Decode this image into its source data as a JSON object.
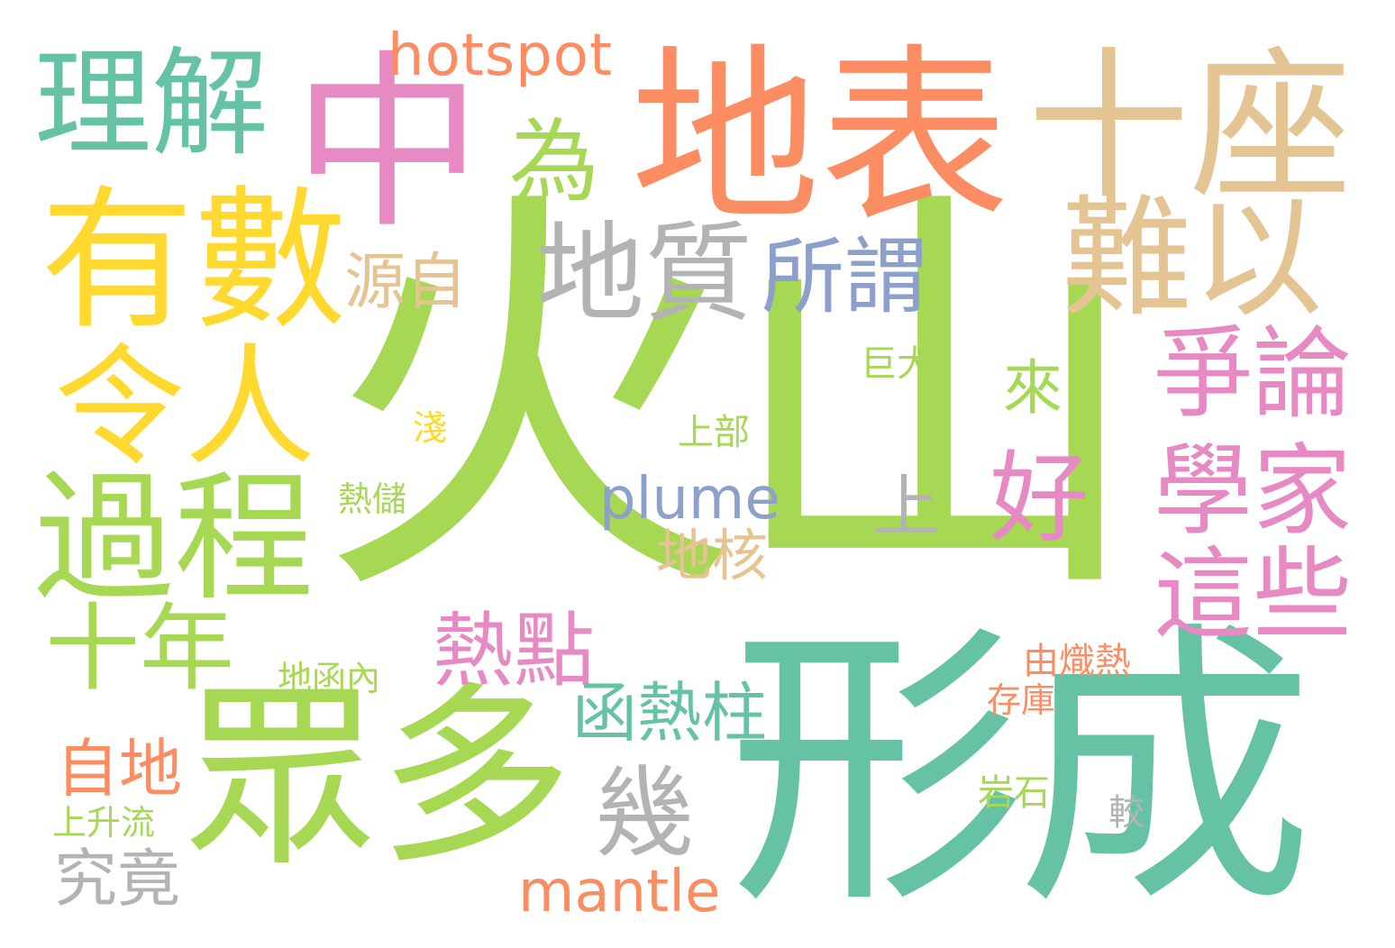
{
  "words": [
    {
      "text": "火山",
      "color": "#a6d854"
    },
    {
      "text": "形成",
      "color": "#66c2a5"
    },
    {
      "text": "地表",
      "color": "#fc8d62"
    },
    {
      "text": "中",
      "color": "#e78ac3"
    },
    {
      "text": "十座",
      "color": "#e5c494"
    },
    {
      "text": "有數",
      "color": "#ffd92f"
    },
    {
      "text": "眾多",
      "color": "#a6d854"
    },
    {
      "text": "理解",
      "color": "#66c2a5"
    },
    {
      "text": "過程",
      "color": "#a6d854"
    },
    {
      "text": "令人",
      "color": "#ffd92f"
    },
    {
      "text": "難以",
      "color": "#e5c494"
    },
    {
      "text": "地質",
      "color": "#b3b3b3"
    },
    {
      "text": "爭論",
      "color": "#e78ac3"
    },
    {
      "text": "學家",
      "color": "#e78ac3"
    },
    {
      "text": "這些",
      "color": "#e78ac3"
    },
    {
      "text": "十年",
      "color": "#a6d854"
    },
    {
      "text": "為",
      "color": "#a6d854"
    },
    {
      "text": "所謂",
      "color": "#8da0cb"
    },
    {
      "text": "好",
      "color": "#e78ac3"
    },
    {
      "text": "幾",
      "color": "#b3b3b3"
    },
    {
      "text": "hotspot",
      "color": "#fc8d62"
    },
    {
      "text": "plume",
      "color": "#8da0cb"
    },
    {
      "text": "mantle",
      "color": "#fc8d62"
    },
    {
      "text": "熱點",
      "color": "#e78ac3"
    },
    {
      "text": "函熱柱",
      "color": "#66c2a5"
    },
    {
      "text": "源自",
      "color": "#e5c494"
    },
    {
      "text": "地核",
      "color": "#e5c494"
    },
    {
      "text": "上",
      "color": "#b3b3b3"
    },
    {
      "text": "來",
      "color": "#a6d854"
    },
    {
      "text": "自地",
      "color": "#fc8d62"
    },
    {
      "text": "究竟",
      "color": "#b3b3b3"
    },
    {
      "text": "巨大",
      "color": "#a6d854"
    },
    {
      "text": "上部",
      "color": "#a6d854"
    },
    {
      "text": "淺",
      "color": "#ffd92f"
    },
    {
      "text": "熱儲",
      "color": "#a6d854"
    },
    {
      "text": "地函內",
      "color": "#a6d854"
    },
    {
      "text": "由熾熱",
      "color": "#fc8d62"
    },
    {
      "text": "存庫",
      "color": "#fc8d62"
    },
    {
      "text": "岩石",
      "color": "#a6d854"
    },
    {
      "text": "較",
      "color": "#b3b3b3"
    },
    {
      "text": "上升流",
      "color": "#a6d854"
    }
  ]
}
